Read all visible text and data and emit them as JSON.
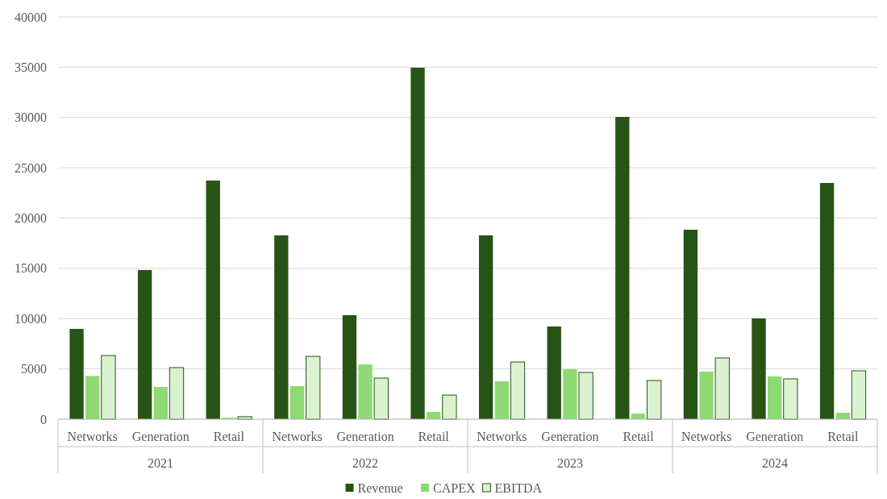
{
  "chart_data": {
    "type": "bar",
    "categories": [
      "Networks",
      "Generation",
      "Retail",
      "Networks",
      "Generation",
      "Retail",
      "Networks",
      "Generation",
      "Retail",
      "Networks",
      "Generation",
      "Retail"
    ],
    "annotations": [
      "2021",
      "2022",
      "2023",
      "2024"
    ],
    "series": [
      {
        "name": "Revenue",
        "color": "#275317",
        "values": [
          8980,
          14830,
          23730,
          18280,
          10340,
          34950,
          18280,
          9220,
          30060,
          18840,
          10020,
          23490
        ]
      },
      {
        "name": "CAPEX",
        "color": "#8ed973",
        "values": [
          4300,
          3200,
          150,
          3290,
          5450,
          720,
          3770,
          4970,
          560,
          4730,
          4250,
          640
        ]
      },
      {
        "name": "EBITDA",
        "color": "#daf2d0",
        "values": [
          6330,
          5130,
          250,
          6250,
          4090,
          2400,
          5690,
          4650,
          3850,
          6090,
          4010,
          4810
        ]
      }
    ],
    "ylim": [
      0,
      40000
    ],
    "yticks": [
      0,
      5000,
      10000,
      15000,
      20000,
      25000,
      30000,
      35000,
      40000
    ],
    "grid": "y",
    "legend": "bottom"
  }
}
